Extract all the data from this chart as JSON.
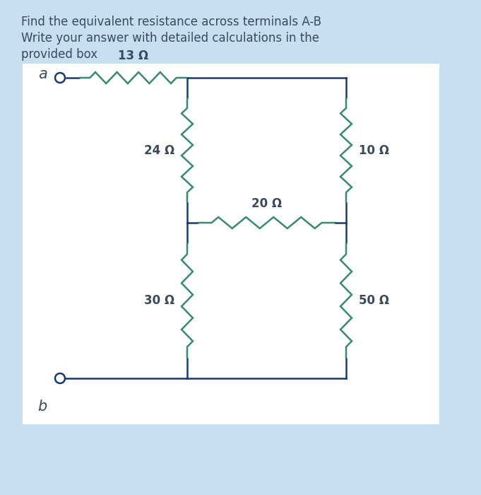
{
  "title_line1": "Find the equivalent resistance across terminals A-B",
  "title_line2": "Write your answer with detailed calculations in the",
  "title_line3": "provided box",
  "bg_color": "#c8dff0",
  "box_color": "#ffffff",
  "wire_color": "#1a3a6b",
  "resistor_color": "#3a8a6a",
  "text_color": "#3a4a5a",
  "label_a": "a",
  "label_b": "b",
  "r13": "13 Ω",
  "r24": "24 Ω",
  "r10": "10 Ω",
  "r20": "20 Ω",
  "r30": "30 Ω",
  "r50": "50 Ω",
  "fig_w": 6.81,
  "fig_h": 7.0
}
